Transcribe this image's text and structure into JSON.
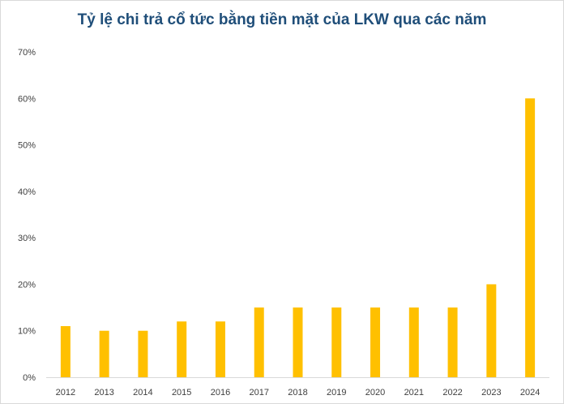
{
  "chart_data": {
    "type": "bar",
    "title": "Tỷ lệ chi trả cổ tức bằng tiền mặt của LKW qua các năm",
    "categories": [
      "2012",
      "2013",
      "2014",
      "2015",
      "2016",
      "2017",
      "2018",
      "2019",
      "2020",
      "2021",
      "2022",
      "2023",
      "2024"
    ],
    "values": [
      11,
      10,
      10,
      12,
      12,
      15,
      15,
      15,
      15,
      15,
      15,
      20,
      60
    ],
    "value_unit": "%",
    "ylim": [
      0,
      70
    ],
    "yticks": [
      "0%",
      "10%",
      "20%",
      "30%",
      "40%",
      "50%",
      "60%",
      "70%"
    ],
    "xlabel": "",
    "ylabel": "",
    "grid": false,
    "legend": "none",
    "bar_color": "#ffc000",
    "title_color": "#1f4e79"
  }
}
